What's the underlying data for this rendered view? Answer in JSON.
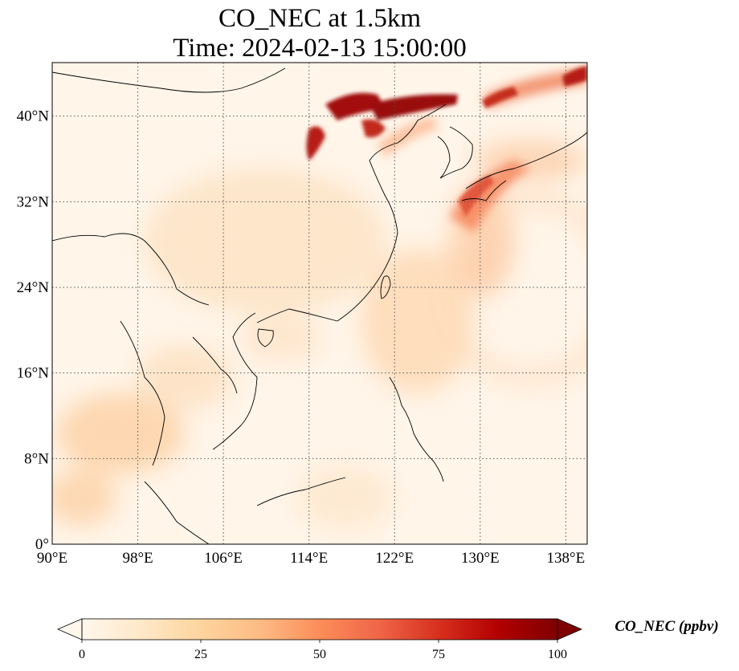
{
  "title": {
    "line1": "CO_NEC at 1.5km",
    "line2": "Time: 2024-02-13 15:00:00"
  },
  "map": {
    "extent": {
      "lon_min": 90,
      "lon_max": 140,
      "lat_min": 0,
      "lat_max": 45
    },
    "lon_ticks": [
      {
        "value": 90,
        "label": "90°E"
      },
      {
        "value": 98,
        "label": "98°E"
      },
      {
        "value": 106,
        "label": "106°E"
      },
      {
        "value": 114,
        "label": "114°E"
      },
      {
        "value": 122,
        "label": "122°E"
      },
      {
        "value": 130,
        "label": "130°E"
      },
      {
        "value": 138,
        "label": "138°E"
      }
    ],
    "lat_ticks": [
      {
        "value": 0,
        "label": "0°"
      },
      {
        "value": 8,
        "label": "8°N"
      },
      {
        "value": 16,
        "label": "16°N"
      },
      {
        "value": 24,
        "label": "24°N"
      },
      {
        "value": 32,
        "label": "32°N"
      },
      {
        "value": 40,
        "label": "40°N"
      }
    ],
    "gridlines": true,
    "colormap": "OrRd"
  },
  "colorbar": {
    "label": "CO_NEC (ppbv)",
    "min": 0,
    "max": 100,
    "extend": "both",
    "ticks": [
      {
        "value": 0,
        "label": "0"
      },
      {
        "value": 25,
        "label": "25"
      },
      {
        "value": 50,
        "label": "50"
      },
      {
        "value": 75,
        "label": "75"
      },
      {
        "value": 100,
        "label": "100"
      }
    ]
  }
}
